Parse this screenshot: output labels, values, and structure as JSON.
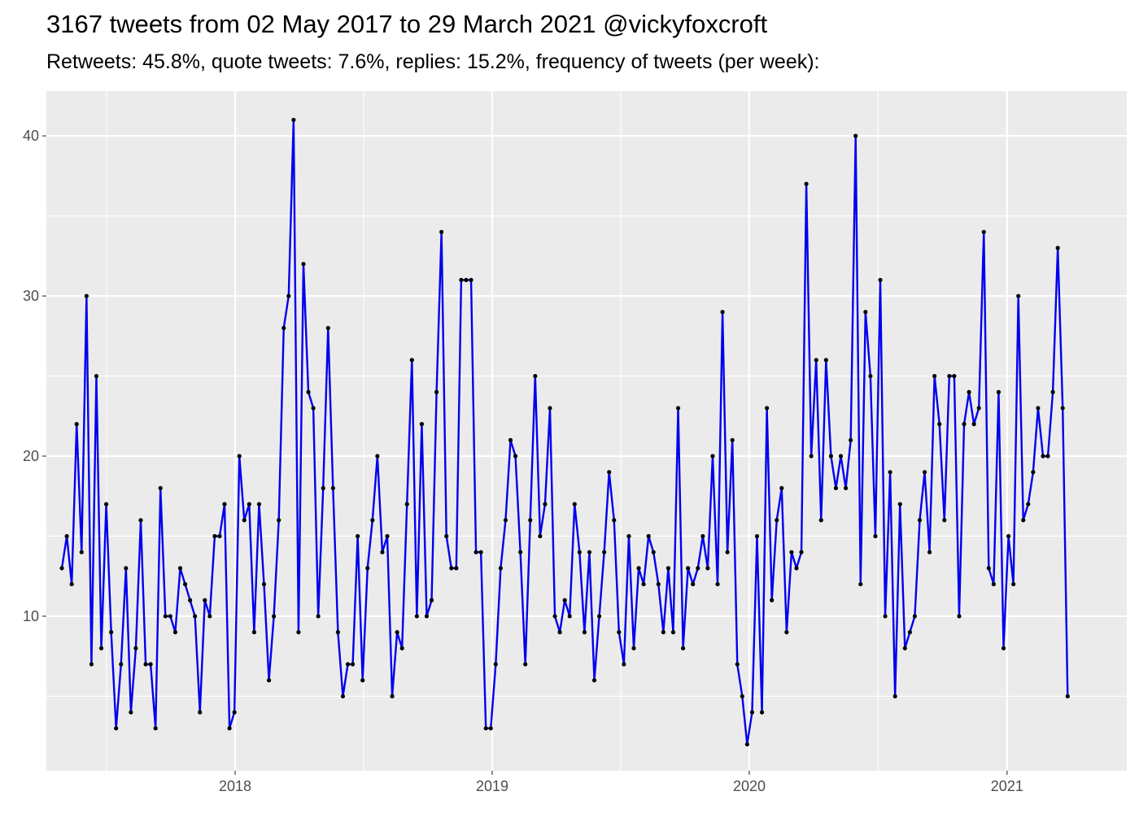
{
  "chart_data": {
    "type": "line",
    "title": "3167 tweets from 02 May 2017 to 29 March 2021 @vickyfoxcroft",
    "subtitle": "Retweets: 45.8%, quote tweets: 7.6%, replies: 15.2%, frequency of tweets (per week):",
    "xlabel": "",
    "ylabel": "",
    "x_range": [
      "2017-04-08",
      "2021-06-20"
    ],
    "ylim": [
      0.35,
      42.8
    ],
    "x_ticks": [
      {
        "date": "2018-01-01",
        "label": "2018"
      },
      {
        "date": "2019-01-01",
        "label": "2019"
      },
      {
        "date": "2020-01-01",
        "label": "2020"
      },
      {
        "date": "2021-01-01",
        "label": "2021"
      }
    ],
    "y_ticks": [
      10,
      20,
      30,
      40
    ],
    "grid": true,
    "legend": "none",
    "line_color": "#0000ee",
    "point_color": "#000000",
    "panel_color": "#ebebeb",
    "grid_color": "#ffffff",
    "series": [
      {
        "x": [
          "2017-04-30",
          "2017-05-07",
          "2017-05-14",
          "2017-05-21",
          "2017-05-28",
          "2017-06-04",
          "2017-06-11",
          "2017-06-18",
          "2017-06-25",
          "2017-07-02",
          "2017-07-09",
          "2017-07-16",
          "2017-07-23",
          "2017-07-30",
          "2017-08-06",
          "2017-08-13",
          "2017-08-20",
          "2017-08-27",
          "2017-09-03",
          "2017-09-10",
          "2017-09-17",
          "2017-09-24",
          "2017-10-01",
          "2017-10-08",
          "2017-10-15",
          "2017-10-22",
          "2017-10-29",
          "2017-11-05",
          "2017-11-12",
          "2017-11-19",
          "2017-11-26",
          "2017-12-03",
          "2017-12-10",
          "2017-12-17",
          "2017-12-24",
          "2017-12-31",
          "2018-01-07",
          "2018-01-14",
          "2018-01-21",
          "2018-01-28",
          "2018-02-04",
          "2018-02-11",
          "2018-02-18",
          "2018-02-25",
          "2018-03-04",
          "2018-03-11",
          "2018-03-18",
          "2018-03-25",
          "2018-04-01",
          "2018-04-08",
          "2018-04-15",
          "2018-04-22",
          "2018-04-29",
          "2018-05-06",
          "2018-05-13",
          "2018-05-20",
          "2018-05-27",
          "2018-06-03",
          "2018-06-10",
          "2018-06-17",
          "2018-06-24",
          "2018-07-01",
          "2018-07-08",
          "2018-07-15",
          "2018-07-22",
          "2018-07-29",
          "2018-08-05",
          "2018-08-12",
          "2018-08-19",
          "2018-08-26",
          "2018-09-02",
          "2018-09-09",
          "2018-09-16",
          "2018-09-23",
          "2018-09-30",
          "2018-10-07",
          "2018-10-14",
          "2018-10-21",
          "2018-10-28",
          "2018-11-04",
          "2018-11-11",
          "2018-11-18",
          "2018-11-25",
          "2018-12-02",
          "2018-12-09",
          "2018-12-16",
          "2018-12-23",
          "2018-12-30",
          "2019-01-06",
          "2019-01-13",
          "2019-01-20",
          "2019-01-27",
          "2019-02-03",
          "2019-02-10",
          "2019-02-17",
          "2019-02-24",
          "2019-03-03",
          "2019-03-10",
          "2019-03-17",
          "2019-03-24",
          "2019-03-31",
          "2019-04-07",
          "2019-04-14",
          "2019-04-21",
          "2019-04-28",
          "2019-05-05",
          "2019-05-12",
          "2019-05-19",
          "2019-05-26",
          "2019-06-02",
          "2019-06-09",
          "2019-06-16",
          "2019-06-23",
          "2019-06-30",
          "2019-07-07",
          "2019-07-14",
          "2019-07-21",
          "2019-07-28",
          "2019-08-04",
          "2019-08-11",
          "2019-08-18",
          "2019-08-25",
          "2019-09-01",
          "2019-09-08",
          "2019-09-15",
          "2019-09-22",
          "2019-09-29",
          "2019-10-06",
          "2019-10-13",
          "2019-10-20",
          "2019-10-27",
          "2019-11-03",
          "2019-11-10",
          "2019-11-17",
          "2019-11-24",
          "2019-12-01",
          "2019-12-08",
          "2019-12-15",
          "2019-12-22",
          "2019-12-29",
          "2020-01-05",
          "2020-01-12",
          "2020-01-19",
          "2020-01-26",
          "2020-02-02",
          "2020-02-09",
          "2020-02-16",
          "2020-02-23",
          "2020-03-01",
          "2020-03-08",
          "2020-03-15",
          "2020-03-22",
          "2020-03-29",
          "2020-04-05",
          "2020-04-12",
          "2020-04-19",
          "2020-04-26",
          "2020-05-03",
          "2020-05-10",
          "2020-05-17",
          "2020-05-24",
          "2020-05-31",
          "2020-06-07",
          "2020-06-14",
          "2020-06-21",
          "2020-06-28",
          "2020-07-05",
          "2020-07-12",
          "2020-07-19",
          "2020-07-26",
          "2020-08-02",
          "2020-08-09",
          "2020-08-16",
          "2020-08-23",
          "2020-08-30",
          "2020-09-06",
          "2020-09-13",
          "2020-09-20",
          "2020-09-27",
          "2020-10-04",
          "2020-10-11",
          "2020-10-18",
          "2020-10-25",
          "2020-11-01",
          "2020-11-08",
          "2020-11-15",
          "2020-11-22",
          "2020-11-29",
          "2020-12-06",
          "2020-12-13",
          "2020-12-20",
          "2020-12-27",
          "2021-01-03",
          "2021-01-10",
          "2021-01-17",
          "2021-01-24",
          "2021-01-31",
          "2021-02-07",
          "2021-02-14",
          "2021-02-21",
          "2021-02-28",
          "2021-03-07",
          "2021-03-14",
          "2021-03-21",
          "2021-03-28"
        ],
        "values": [
          13,
          15,
          12,
          22,
          14,
          30,
          7,
          25,
          8,
          17,
          9,
          3,
          7,
          13,
          4,
          8,
          16,
          7,
          7,
          3,
          18,
          10,
          10,
          9,
          13,
          12,
          11,
          10,
          4,
          11,
          10,
          15,
          15,
          17,
          3,
          4,
          20,
          16,
          17,
          9,
          17,
          12,
          6,
          10,
          16,
          28,
          30,
          41,
          9,
          32,
          24,
          23,
          10,
          18,
          28,
          18,
          9,
          5,
          7,
          7,
          15,
          6,
          13,
          16,
          20,
          14,
          15,
          5,
          9,
          8,
          17,
          26,
          10,
          22,
          10,
          11,
          24,
          34,
          15,
          13,
          13,
          31,
          31,
          31,
          14,
          14,
          3,
          3,
          7,
          13,
          16,
          21,
          20,
          14,
          7,
          16,
          25,
          15,
          17,
          23,
          10,
          9,
          11,
          10,
          17,
          14,
          9,
          14,
          6,
          10,
          14,
          19,
          16,
          9,
          7,
          15,
          8,
          13,
          12,
          15,
          14,
          12,
          9,
          13,
          9,
          23,
          8,
          13,
          12,
          13,
          15,
          13,
          20,
          12,
          29,
          14,
          21,
          7,
          5,
          2,
          4,
          15,
          4,
          23,
          11,
          16,
          18,
          9,
          14,
          13,
          14,
          37,
          20,
          26,
          16,
          26,
          20,
          18,
          20,
          18,
          21,
          40,
          12,
          29,
          25,
          15,
          31,
          10,
          19,
          5,
          17,
          8,
          9,
          10,
          16,
          19,
          14,
          25,
          22,
          16,
          25,
          25,
          10,
          22,
          24,
          22,
          23,
          34,
          13,
          12,
          24,
          8,
          15,
          12,
          30,
          16,
          17,
          19,
          23,
          20,
          20,
          24,
          33,
          23,
          5
        ]
      }
    ]
  }
}
